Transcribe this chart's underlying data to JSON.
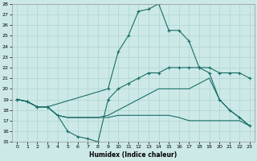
{
  "xlabel": "Humidex (Indice chaleur)",
  "bg_color": "#cce9e7",
  "grid_color": "#afd4d1",
  "line_color": "#1a6e68",
  "xlim": [
    -0.5,
    23.5
  ],
  "ylim": [
    15,
    28
  ],
  "yticks": [
    15,
    16,
    17,
    18,
    19,
    20,
    21,
    22,
    23,
    24,
    25,
    26,
    27,
    28
  ],
  "xticks": [
    0,
    1,
    2,
    3,
    4,
    5,
    6,
    7,
    8,
    9,
    10,
    11,
    12,
    13,
    14,
    15,
    16,
    17,
    18,
    19,
    20,
    21,
    22,
    23
  ],
  "line_peak_x": [
    0,
    1,
    2,
    3,
    9,
    10,
    11,
    12,
    13,
    14,
    15,
    16,
    17,
    18,
    19,
    20,
    21,
    22,
    23
  ],
  "line_peak_y": [
    19,
    18.8,
    18.3,
    18.3,
    20.0,
    23.5,
    25.0,
    27.3,
    27.5,
    28.0,
    25.5,
    25.5,
    24.5,
    22.0,
    22.0,
    21.5,
    21.5,
    21.5,
    21.0
  ],
  "line_mid_x": [
    0,
    1,
    2,
    3,
    4,
    5,
    6,
    7,
    8,
    9,
    10,
    11,
    12,
    13,
    14,
    15,
    16,
    17,
    18,
    19,
    20,
    21,
    22,
    23
  ],
  "line_mid_y": [
    19,
    18.8,
    18.3,
    18.3,
    17.5,
    16.0,
    15.5,
    15.3,
    15.0,
    19.0,
    20.0,
    20.5,
    21.0,
    21.5,
    21.5,
    22.0,
    22.0,
    22.0,
    22.0,
    21.5,
    19.0,
    18.0,
    17.3,
    16.5
  ],
  "line_grad_x": [
    0,
    1,
    2,
    3,
    4,
    5,
    6,
    7,
    8,
    9,
    10,
    11,
    12,
    13,
    14,
    15,
    16,
    17,
    18,
    19,
    20,
    21,
    22,
    23
  ],
  "line_grad_y": [
    19,
    18.8,
    18.3,
    18.3,
    17.5,
    17.3,
    17.3,
    17.3,
    17.3,
    17.5,
    18.0,
    18.5,
    19.0,
    19.5,
    20.0,
    20.0,
    20.0,
    20.0,
    20.5,
    21.0,
    19.0,
    18.0,
    17.3,
    16.5
  ],
  "line_low_x": [
    0,
    1,
    2,
    3,
    4,
    5,
    6,
    7,
    8,
    9,
    10,
    11,
    12,
    13,
    14,
    15,
    16,
    17,
    18,
    19,
    20,
    21,
    22,
    23
  ],
  "line_low_y": [
    19,
    18.8,
    18.3,
    18.3,
    17.5,
    17.3,
    17.3,
    17.3,
    17.3,
    17.3,
    17.5,
    17.5,
    17.5,
    17.5,
    17.5,
    17.5,
    17.3,
    17.0,
    17.0,
    17.0,
    17.0,
    17.0,
    17.0,
    16.5
  ]
}
